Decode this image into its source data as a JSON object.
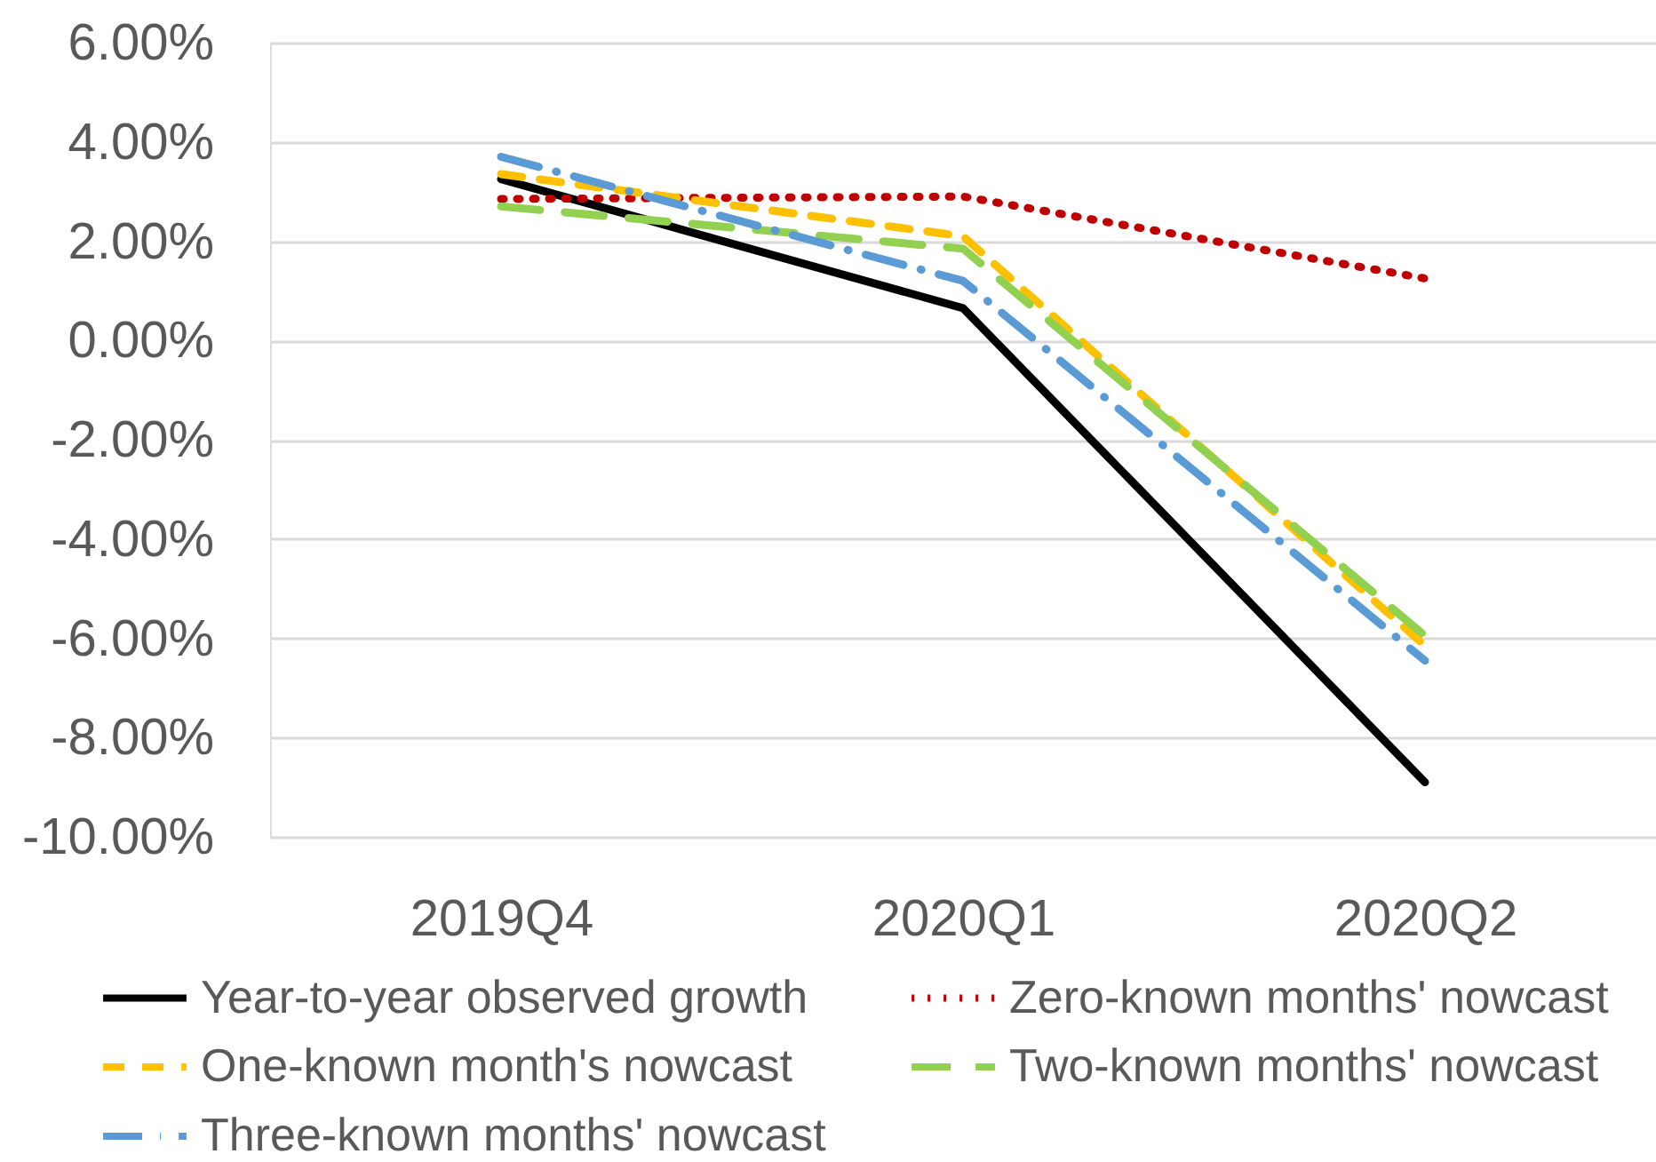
{
  "chart_data": {
    "type": "line",
    "categories": [
      "2019Q4",
      "2020Q1",
      "2020Q2"
    ],
    "series": [
      {
        "name": "Year-to-year observed growth",
        "color": "#000000",
        "line_style": "solid",
        "values": [
          3.25,
          0.65,
          -8.9
        ]
      },
      {
        "name": "Zero-known months' nowcast",
        "color": "#c00000",
        "line_style": "dotted",
        "values": [
          2.85,
          2.9,
          1.25
        ]
      },
      {
        "name": "One-known month's nowcast",
        "color": "#ffc000",
        "line_style": "dashed",
        "values": [
          3.35,
          2.1,
          -6.15
        ]
      },
      {
        "name": "Two-known months' nowcast",
        "color": "#92d050",
        "line_style": "longdash",
        "values": [
          2.7,
          1.85,
          -5.95
        ]
      },
      {
        "name": "Three-known months' nowcast",
        "color": "#5b9bd5",
        "line_style": "dashdot",
        "values": [
          3.7,
          1.2,
          -6.45
        ]
      }
    ],
    "ylim": [
      -10,
      6
    ],
    "yticks": [
      {
        "value": 6,
        "label": "6.00%"
      },
      {
        "value": 4,
        "label": "4.00%"
      },
      {
        "value": 2,
        "label": "2.00%"
      },
      {
        "value": 0,
        "label": "0.00%"
      },
      {
        "value": -2,
        "label": "-2.00%"
      },
      {
        "value": -4,
        "label": "-4.00%"
      },
      {
        "value": -6,
        "label": "-6.00%"
      },
      {
        "value": -8,
        "label": "-8.00%"
      },
      {
        "value": -10,
        "label": "-10.00%"
      }
    ],
    "grid": "y",
    "legend": "bottom"
  }
}
